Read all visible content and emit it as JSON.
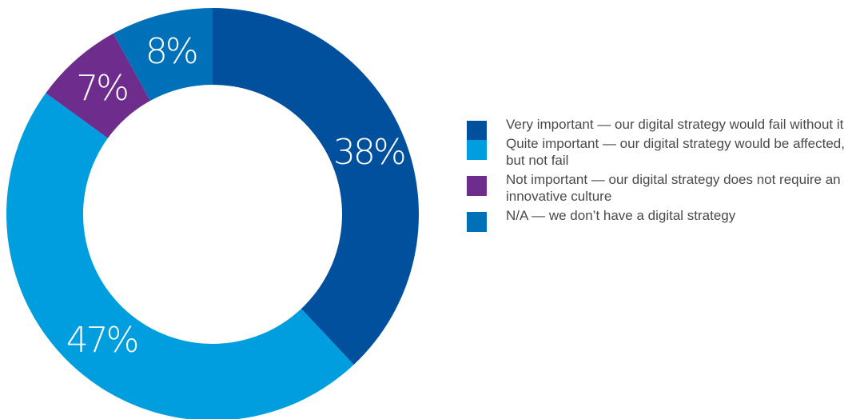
{
  "chart_data": {
    "type": "pie",
    "donut": true,
    "categories": [
      "Very important — our digital strategy would fail without it",
      "Quite important — our digital strategy would be affected, but not fail",
      "Not important — our digital strategy does not require an innovative culture",
      "N/A — we don’t have a digital strategy"
    ],
    "values": [
      38,
      47,
      7,
      8
    ],
    "value_labels": [
      "38%",
      "47%",
      "7%",
      "8%"
    ],
    "colors": [
      "#00509e",
      "#009ede",
      "#6e2c8c",
      "#0070b9"
    ],
    "title": "",
    "legend_position": "right",
    "start_angle": "top",
    "direction": "clockwise"
  }
}
